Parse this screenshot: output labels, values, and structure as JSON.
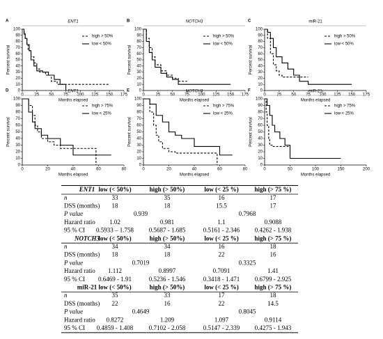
{
  "chart_data": [
    {
      "type": "step",
      "letter": "A",
      "title": "ENT1",
      "title_italic": true,
      "xlabel": "Months elapsed",
      "ylabel": "Percent survival",
      "xlim": [
        0,
        175
      ],
      "xticks": [
        0,
        25,
        50,
        75,
        100,
        125,
        150,
        175
      ],
      "ylim": [
        0,
        100
      ],
      "yticks": [
        0,
        10,
        20,
        30,
        40,
        50,
        60,
        70,
        80,
        90,
        100
      ],
      "series": [
        {
          "name": "high > 50%",
          "color": "#000000",
          "dashed": true,
          "x": [
            0,
            3,
            5,
            8,
            10,
            15,
            20,
            25,
            30,
            40,
            50,
            60,
            75,
            150
          ],
          "values": [
            100,
            95,
            85,
            75,
            65,
            55,
            45,
            35,
            30,
            25,
            15,
            10,
            10,
            10
          ]
        },
        {
          "name": "low < 50%",
          "color": "#000000",
          "dashed": false,
          "x": [
            0,
            3,
            5,
            8,
            12,
            15,
            20,
            25,
            35,
            45,
            55,
            65,
            75
          ],
          "values": [
            100,
            92,
            85,
            75,
            65,
            50,
            40,
            32,
            30,
            25,
            18,
            10,
            0
          ]
        }
      ]
    },
    {
      "type": "step",
      "letter": "B",
      "title": "NOTCH3",
      "title_italic": true,
      "xlabel": "Months elapsed",
      "ylabel": "Percent survival",
      "xlim": [
        0,
        175
      ],
      "xticks": [
        0,
        25,
        50,
        75,
        100,
        125,
        150,
        175
      ],
      "ylim": [
        0,
        100
      ],
      "yticks": [
        0,
        10,
        20,
        30,
        40,
        50,
        60,
        70,
        80,
        90,
        100
      ],
      "series": [
        {
          "name": "high > 50%",
          "color": "#000000",
          "dashed": true,
          "x": [
            0,
            5,
            10,
            15,
            20,
            30,
            40,
            50,
            60,
            75
          ],
          "values": [
            100,
            85,
            70,
            55,
            42,
            32,
            25,
            20,
            15,
            15
          ]
        },
        {
          "name": "low < 50%",
          "color": "#000000",
          "dashed": false,
          "x": [
            0,
            5,
            10,
            15,
            20,
            30,
            40,
            50,
            60,
            150
          ],
          "values": [
            100,
            80,
            62,
            50,
            38,
            28,
            22,
            18,
            10,
            10
          ]
        }
      ]
    },
    {
      "type": "step",
      "letter": "C",
      "title": "miR-21",
      "title_italic": false,
      "xlabel": "Months elapsed",
      "ylabel": "Percent survival",
      "xlim": [
        0,
        175
      ],
      "xticks": [
        0,
        25,
        50,
        75,
        100,
        125,
        150,
        175
      ],
      "ylim": [
        0,
        100
      ],
      "yticks": [
        0,
        10,
        20,
        30,
        40,
        50,
        60,
        70,
        80,
        90,
        100
      ],
      "series": [
        {
          "name": "high > 50%",
          "color": "#000000",
          "dashed": true,
          "x": [
            0,
            5,
            10,
            15,
            20,
            25,
            30,
            40,
            50,
            75
          ],
          "values": [
            100,
            85,
            60,
            42,
            32,
            25,
            22,
            22,
            22,
            22
          ]
        },
        {
          "name": "low < 50%",
          "color": "#000000",
          "dashed": false,
          "x": [
            0,
            5,
            10,
            15,
            20,
            30,
            40,
            50,
            60,
            75,
            150
          ],
          "values": [
            100,
            95,
            85,
            70,
            55,
            45,
            35,
            25,
            15,
            10,
            10
          ]
        }
      ]
    },
    {
      "type": "step",
      "letter": "D",
      "title": "ENT1",
      "title_italic": true,
      "xlabel": "Months elapsed",
      "ylabel": "Percent survival",
      "xlim": [
        0,
        80
      ],
      "xticks": [
        0,
        20,
        40,
        60,
        80
      ],
      "ylim": [
        0,
        100
      ],
      "yticks": [
        0,
        10,
        20,
        30,
        40,
        50,
        60,
        70,
        80,
        90,
        100
      ],
      "series": [
        {
          "name": "high > 75%",
          "color": "#000000",
          "dashed": true,
          "x": [
            0,
            5,
            8,
            10,
            12,
            15,
            20,
            25,
            30,
            40,
            57,
            58
          ],
          "values": [
            100,
            90,
            75,
            60,
            50,
            40,
            35,
            30,
            25,
            25,
            25,
            0
          ]
        },
        {
          "name": "low < 25%",
          "color": "#000000",
          "dashed": false,
          "x": [
            0,
            5,
            8,
            10,
            15,
            20,
            30,
            40,
            70
          ],
          "values": [
            100,
            80,
            65,
            55,
            45,
            40,
            30,
            15,
            15
          ]
        }
      ]
    },
    {
      "type": "step",
      "letter": "E",
      "title": "NOTCH3",
      "title_italic": true,
      "xlabel": "Months elapsed",
      "ylabel": "Percent survival",
      "xlim": [
        0,
        80
      ],
      "xticks": [
        0,
        20,
        40,
        60,
        80
      ],
      "ylim": [
        0,
        100
      ],
      "yticks": [
        0,
        10,
        20,
        30,
        40,
        50,
        60,
        70,
        80,
        90,
        100
      ],
      "series": [
        {
          "name": "high > 75%",
          "color": "#000000",
          "dashed": true,
          "x": [
            0,
            5,
            8,
            10,
            12,
            15,
            20,
            25,
            30,
            57,
            58
          ],
          "values": [
            100,
            80,
            60,
            45,
            35,
            25,
            20,
            18,
            18,
            18,
            0
          ]
        },
        {
          "name": "low < 25%",
          "color": "#000000",
          "dashed": false,
          "x": [
            0,
            5,
            10,
            15,
            20,
            25,
            30,
            40,
            60,
            70
          ],
          "values": [
            100,
            92,
            75,
            65,
            50,
            45,
            40,
            28,
            15,
            15
          ]
        }
      ]
    },
    {
      "type": "step",
      "letter": "F",
      "title": "miR-21",
      "title_italic": false,
      "xlabel": "Months elapsed",
      "ylabel": "Percent survival",
      "xlim": [
        0,
        200
      ],
      "xticks": [
        0,
        50,
        100,
        150,
        200
      ],
      "ylim": [
        0,
        100
      ],
      "yticks": [
        0,
        10,
        20,
        30,
        40,
        50,
        60,
        70,
        80,
        90,
        100
      ],
      "series": [
        {
          "name": "high > 75%",
          "color": "#000000",
          "dashed": true,
          "x": [
            0,
            3,
            5,
            8,
            10,
            15,
            20,
            50
          ],
          "values": [
            100,
            80,
            60,
            40,
            30,
            28,
            28,
            28
          ]
        },
        {
          "name": "low < 25%",
          "color": "#000000",
          "dashed": false,
          "x": [
            0,
            5,
            10,
            15,
            20,
            30,
            40,
            50,
            150
          ],
          "values": [
            100,
            90,
            75,
            60,
            50,
            40,
            30,
            10,
            10
          ]
        }
      ]
    }
  ],
  "table": {
    "sections": [
      {
        "header": [
          "ENT1",
          "low (< 50%)",
          "high (> 50%)",
          "low (< 25 %)",
          "high (> 75 %)"
        ],
        "header_italic": true,
        "rows": [
          [
            "n",
            "33",
            "35",
            "16",
            "17"
          ],
          [
            "DSS (months)",
            "18",
            "18",
            "15.5",
            "17"
          ],
          [
            "P value",
            "0.939",
            "0.7968"
          ],
          [
            "Hazard ratio",
            "1.02",
            "0.981",
            "1.1",
            "0.9088"
          ],
          [
            "95 % CI",
            "0.5933 – 1.758",
            "0.5687 - 1.685",
            "0.5161 - 2.346",
            "0.4262 - 1.938"
          ]
        ]
      },
      {
        "header": [
          "NOTCH3",
          "low (< 50%)",
          "high (> 50%)",
          "low (< 25 %)",
          "high (> 75 %)"
        ],
        "header_italic": true,
        "rows": [
          [
            "n",
            "34",
            "34",
            "16",
            "18"
          ],
          [
            "DSS (months)",
            "18",
            "18",
            "22",
            "16"
          ],
          [
            "P value",
            "0.7019",
            "0.3325"
          ],
          [
            "Hazard ratio",
            "1.112",
            "0.8997",
            "0.7091",
            "1.41"
          ],
          [
            "95 % CI",
            "0.6469 - 1.91",
            "0.5236 - 1.546",
            "0.3418 - 1.471",
            "0.6799 - 2.925"
          ]
        ]
      },
      {
        "header": [
          "miR-21",
          "low (< 50%)",
          "high (> 50%)",
          "low (< 25 %)",
          "high (> 75 %)"
        ],
        "header_italic": false,
        "rows": [
          [
            "n",
            "35",
            "33",
            "17",
            "18"
          ],
          [
            "DSS (months)",
            "22",
            "16",
            "22",
            "14.5"
          ],
          [
            "P value",
            "0.4649",
            "0.8045"
          ],
          [
            "Hazard ratio",
            "0.8272",
            "1.209",
            "1.097",
            "0.9114"
          ],
          [
            "95 % CI",
            "0.4859 - 1.408",
            "0.7102 - 2.058",
            "0.5147 - 2.339",
            "0.4275 - 1.943"
          ]
        ]
      }
    ]
  }
}
